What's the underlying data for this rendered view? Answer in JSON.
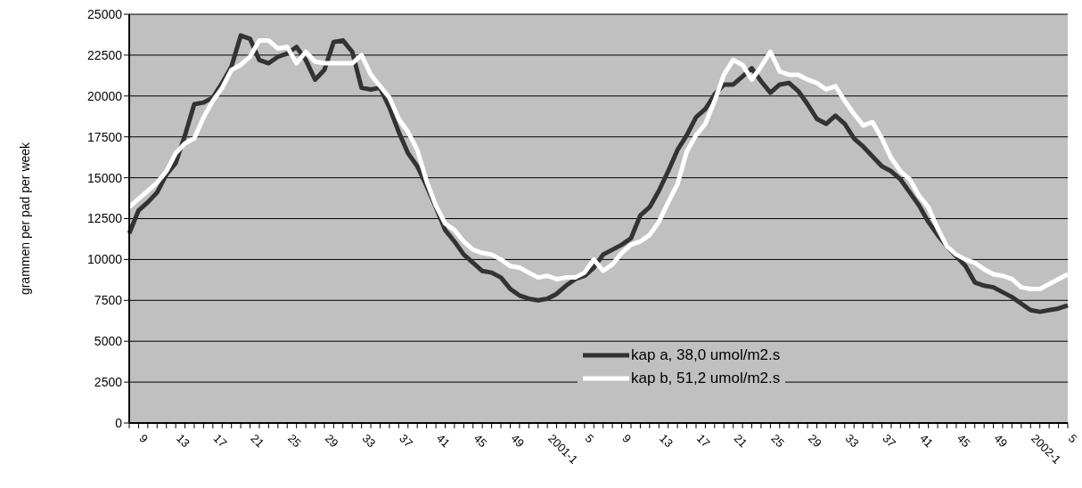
{
  "chart_data": {
    "type": "line",
    "ylabel": "grammen per pad per week",
    "categories": [
      null,
      "9",
      null,
      null,
      null,
      "13",
      null,
      null,
      null,
      "17",
      null,
      null,
      null,
      "21",
      null,
      null,
      null,
      "25",
      null,
      null,
      null,
      "29",
      null,
      null,
      null,
      "33",
      null,
      null,
      null,
      "37",
      null,
      null,
      null,
      "41",
      null,
      null,
      null,
      "45",
      null,
      null,
      null,
      "49",
      null,
      null,
      null,
      "2001-1",
      null,
      null,
      null,
      "5",
      null,
      null,
      null,
      "9",
      null,
      null,
      null,
      "13",
      null,
      null,
      null,
      "17",
      null,
      null,
      null,
      "21",
      null,
      null,
      null,
      "25",
      null,
      null,
      null,
      "29",
      null,
      null,
      null,
      "33",
      null,
      null,
      null,
      "37",
      null,
      null,
      null,
      "41",
      null,
      null,
      null,
      "45",
      null,
      null,
      null,
      "49",
      null,
      null,
      null,
      "2002-1",
      null,
      null,
      null,
      "5"
    ],
    "series": [
      {
        "name": "kap a, 38,0 umol/m2.s",
        "color": "#333333",
        "values": [
          11600,
          13000,
          13500,
          14100,
          15200,
          15900,
          17600,
          19500,
          19600,
          19900,
          20800,
          21800,
          23700,
          23500,
          22200,
          22000,
          22400,
          22600,
          23000,
          22200,
          21000,
          21600,
          23300,
          23400,
          22700,
          20500,
          20400,
          20500,
          19300,
          17800,
          16500,
          15700,
          14500,
          13200,
          11800,
          11100,
          10300,
          9800,
          9300,
          9200,
          8900,
          8200,
          7800,
          7600,
          7500,
          7600,
          7900,
          8400,
          8800,
          9000,
          9500,
          10300,
          10600,
          10900,
          11300,
          12700,
          13200,
          14200,
          15400,
          16700,
          17600,
          18700,
          19200,
          20100,
          20700,
          20700,
          21200,
          21700,
          20900,
          20200,
          20700,
          20800,
          20300,
          19500,
          18600,
          18300,
          18800,
          18300,
          17400,
          16900,
          16300,
          15700,
          15400,
          14900,
          14100,
          13300,
          12300,
          11500,
          10800,
          10200,
          9600,
          8600,
          8400,
          8300,
          8000,
          7700,
          7300,
          6900,
          6800,
          6900,
          7000,
          7200
        ]
      },
      {
        "name": "kap b, 51,2 umol/m2.s",
        "color": "#ffffff",
        "values": [
          13200,
          13700,
          14200,
          14700,
          15400,
          16500,
          17100,
          17400,
          18700,
          19700,
          20500,
          21600,
          21900,
          22400,
          23400,
          23400,
          22900,
          23000,
          22000,
          22700,
          22100,
          22000,
          22000,
          22000,
          22000,
          22500,
          21300,
          20600,
          19900,
          18600,
          17800,
          16700,
          14800,
          13300,
          12200,
          11800,
          11100,
          10600,
          10400,
          10300,
          10000,
          9600,
          9500,
          9200,
          8900,
          9000,
          8800,
          8900,
          8900,
          9200,
          10000,
          9300,
          9700,
          10400,
          10900,
          11100,
          11500,
          12300,
          13500,
          14600,
          16600,
          17600,
          18300,
          19700,
          21300,
          22200,
          21900,
          21000,
          21800,
          22700,
          21500,
          21300,
          21300,
          21000,
          20800,
          20400,
          20600,
          19700,
          18900,
          18200,
          18400,
          17400,
          16200,
          15400,
          14900,
          13900,
          13200,
          11900,
          10800,
          10300,
          10000,
          9800,
          9400,
          9100,
          9000,
          8800,
          8300,
          8200,
          8200,
          8500,
          8800,
          9100
        ]
      }
    ],
    "ylim": [
      0,
      25000
    ],
    "yticks": [
      0,
      2500,
      5000,
      7500,
      10000,
      12500,
      15000,
      17500,
      20000,
      22500,
      25000
    ],
    "grid": "y",
    "legend": "bottom",
    "marker": "none",
    "line_style": "solid"
  }
}
